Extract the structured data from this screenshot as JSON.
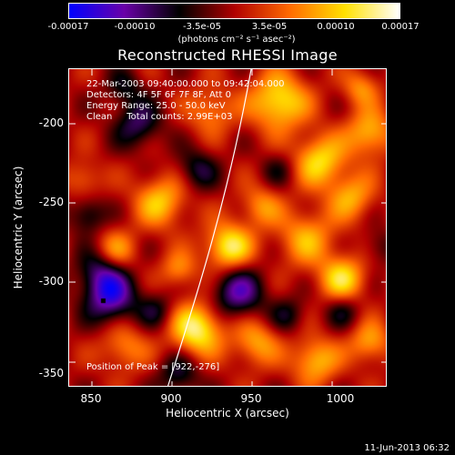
{
  "colorbar": {
    "ticks": [
      "-0.00017",
      "-0.00010",
      "-3.5e-05",
      "3.5e-05",
      "0.00010",
      "0.00017"
    ],
    "unit": "(photons cm⁻² s⁻¹ asec⁻²)",
    "stops": [
      "#0000ff",
      "#6a00a8",
      "#000000",
      "#b00000",
      "#ff6a00",
      "#ffe000",
      "#ffffff"
    ]
  },
  "title": "Reconstructed RHESSI Image",
  "info": {
    "time": "22-Mar-2003 09:40:00.000 to 09:42:04.000",
    "detectors": "Detectors: 4F 5F 6F 7F 8F, Att 0",
    "energy": "Energy Range: 25.0 - 50.0 keV",
    "clean": "Clean     Total counts: 2.99E+03",
    "peak": "Position of Peak = [922,-276]"
  },
  "axes": {
    "xlabel": "Heliocentric X (arcsec)",
    "ylabel": "Heliocentric Y (arcsec)",
    "xticks": [
      "850",
      "900",
      "950",
      "1000"
    ],
    "yticks": [
      "-200",
      "-250",
      "-300",
      "-350"
    ]
  },
  "timestamp": "11-Jun-2013 06:32"
}
